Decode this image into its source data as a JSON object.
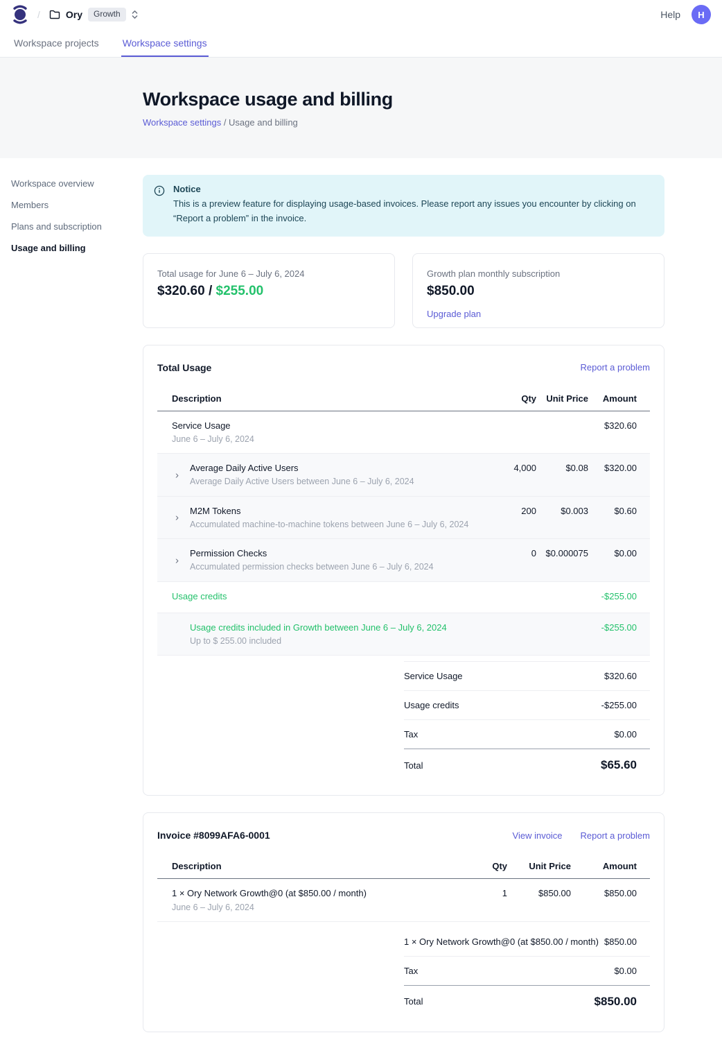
{
  "colors": {
    "accent_purple": "#5a5bd5",
    "accent_green": "#23c16b",
    "notice_bg": "#e1f5f9",
    "notice_text": "#1d4656",
    "logo_indigo": "#35327d",
    "avatar_bg": "#6a6bf5",
    "tinted_row_bg": "#f8f9fb"
  },
  "topbar": {
    "separator": "/",
    "workspace_name": "Ory",
    "plan_badge": "Growth",
    "help_label": "Help",
    "avatar_initial": "H"
  },
  "tabs": [
    {
      "label": "Workspace projects",
      "active": false
    },
    {
      "label": "Workspace settings",
      "active": true
    }
  ],
  "hero": {
    "title": "Workspace usage and billing",
    "breadcrumb_link": "Workspace settings",
    "breadcrumb_rest": " / Usage and billing"
  },
  "sidebar": {
    "items": [
      {
        "label": "Workspace overview",
        "active": false
      },
      {
        "label": "Members",
        "active": false
      },
      {
        "label": "Plans and subscription",
        "active": false
      },
      {
        "label": "Usage and billing",
        "active": true
      }
    ]
  },
  "notice": {
    "title": "Notice",
    "body": "This is a preview feature for displaying usage-based invoices. Please report any issues you encounter by clicking on “Report a problem” in the invoice."
  },
  "summary_cards": {
    "usage": {
      "label": "Total usage for June 6 – July 6, 2024",
      "value_main": "$320.60 / ",
      "value_accent": "$255.00"
    },
    "plan": {
      "label": "Growth plan monthly subscription",
      "value": "$850.00",
      "link": "Upgrade plan"
    }
  },
  "usage_card": {
    "title": "Total Usage",
    "report_link": "Report a problem",
    "columns": {
      "description": "Description",
      "qty": "Qty",
      "unit_price": "Unit Price",
      "amount": "Amount"
    },
    "rows": [
      {
        "title": "Service Usage",
        "subtitle": "June 6 – July 6, 2024",
        "qty": "",
        "unit_price": "",
        "amount": "$320.60",
        "tinted": false,
        "chevron": false,
        "green": false,
        "indent": false
      },
      {
        "title": "Average Daily Active Users",
        "subtitle": "Average Daily Active Users between June 6 – July 6, 2024",
        "qty": "4,000",
        "unit_price": "$0.08",
        "amount": "$320.00",
        "tinted": true,
        "chevron": true,
        "green": false,
        "indent": false
      },
      {
        "title": "M2M Tokens",
        "subtitle": "Accumulated machine-to-machine tokens between June 6 – July 6, 2024",
        "qty": "200",
        "unit_price": "$0.003",
        "amount": "$0.60",
        "tinted": true,
        "chevron": true,
        "green": false,
        "indent": false
      },
      {
        "title": "Permission Checks",
        "subtitle": "Accumulated permission checks between June 6 – July 6, 2024",
        "qty": "0",
        "unit_price": "$0.000075",
        "amount": "$0.00",
        "tinted": true,
        "chevron": true,
        "green": false,
        "indent": false
      },
      {
        "title": "Usage credits",
        "subtitle": "",
        "qty": "",
        "unit_price": "",
        "amount": "-$255.00",
        "tinted": false,
        "chevron": false,
        "green": true,
        "indent": false
      },
      {
        "title": "Usage credits included in Growth between June 6 – July 6, 2024",
        "subtitle": "Up to $ 255.00 included",
        "qty": "",
        "unit_price": "",
        "amount": "-$255.00",
        "tinted": true,
        "chevron": false,
        "green": true,
        "indent": true
      }
    ],
    "summary": [
      {
        "label": "Service Usage",
        "value": "$320.60"
      },
      {
        "label": "Usage credits",
        "value": "-$255.00"
      },
      {
        "label": "Tax",
        "value": "$0.00"
      }
    ],
    "total": {
      "label": "Total",
      "value": "$65.60"
    }
  },
  "invoice_card": {
    "title": "Invoice #8099AFA6-0001",
    "view_link": "View invoice",
    "report_link": "Report a problem",
    "columns": {
      "description": "Description",
      "qty": "Qty",
      "unit_price": "Unit Price",
      "amount": "Amount"
    },
    "rows": [
      {
        "title": "1 × Ory Network Growth@0 (at $850.00 / month)",
        "subtitle": "June 6 – July 6, 2024",
        "qty": "1",
        "unit_price": "$850.00",
        "amount": "$850.00",
        "tinted": false,
        "chevron": false,
        "green": false,
        "indent": false
      }
    ],
    "summary": [
      {
        "label": "1 × Ory Network Growth@0 (at $850.00 / month)",
        "value": "$850.00"
      },
      {
        "label": "Tax",
        "value": "$0.00"
      }
    ],
    "total": {
      "label": "Total",
      "value": "$850.00"
    }
  }
}
